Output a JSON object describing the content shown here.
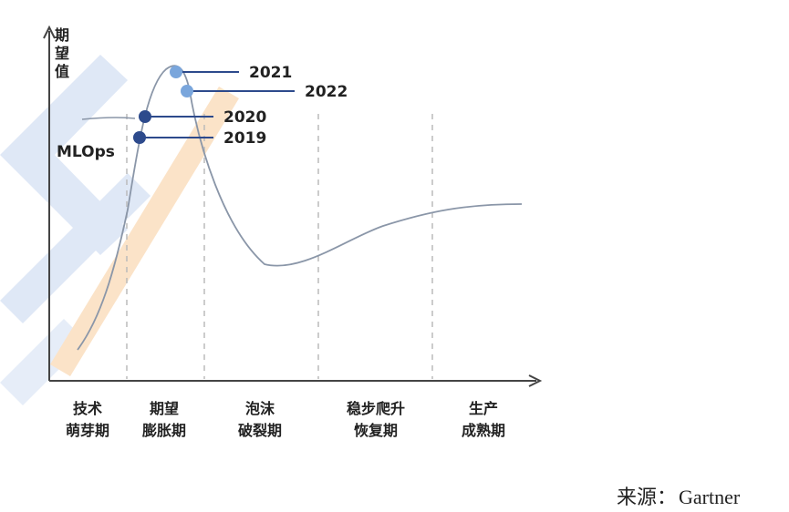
{
  "diagram": {
    "y_axis_label": "期望值",
    "technology_label": "MLOps",
    "phases": [
      {
        "line1": "技术",
        "line2": "萌芽期"
      },
      {
        "line1": "期望",
        "line2": "膨胀期"
      },
      {
        "line1": "泡沫",
        "line2": "破裂期"
      },
      {
        "line1": "稳步爬升",
        "line2": "恢复期"
      },
      {
        "line1": "生产",
        "line2": "成熟期"
      }
    ],
    "markers": [
      {
        "year": "2021",
        "color": "#7aa6dc"
      },
      {
        "year": "2022",
        "color": "#7aa6dc"
      },
      {
        "year": "2020",
        "color": "#2d4a8c"
      },
      {
        "year": "2019",
        "color": "#2d4a8c"
      }
    ],
    "colors": {
      "curve": "#8a96a8",
      "axis": "#444444",
      "divider": "#bbbbbb",
      "leader": "#2d4a8c",
      "watermark_blue": "#dfe8f6",
      "watermark_orange": "#fbe3c8"
    }
  },
  "source": {
    "label": "来源：",
    "value": "Gartner"
  }
}
